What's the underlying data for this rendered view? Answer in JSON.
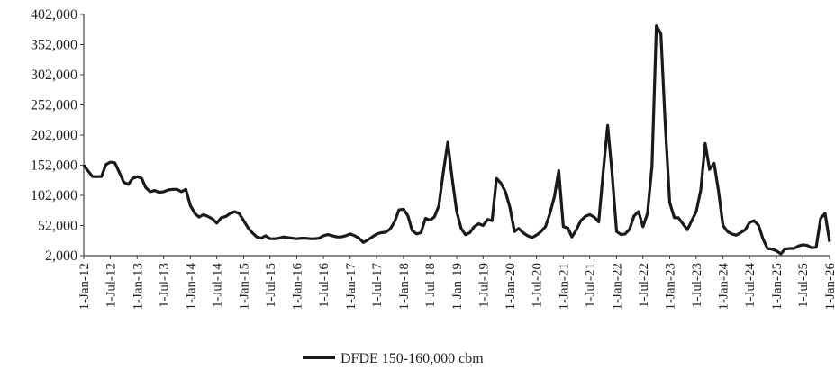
{
  "chart_data": {
    "type": "line",
    "title": "",
    "xlabel": "",
    "ylabel": "",
    "ylim": [
      2000,
      402000
    ],
    "y_ticks": [
      "402,000",
      "352,000",
      "302,000",
      "252,000",
      "202,000",
      "152,000",
      "102,000",
      "52,000",
      "2,000"
    ],
    "y_tick_values": [
      402000,
      352000,
      302000,
      252000,
      202000,
      152000,
      102000,
      52000,
      2000
    ],
    "x_tick_labels": [
      "1-Jan-12",
      "1-Jul-12",
      "1-Jan-13",
      "1-Jul-13",
      "1-Jan-14",
      "1-Jul-14",
      "1-Jan-15",
      "1-Jul-15",
      "1-Jan-16",
      "1-Jul-16",
      "1-Jan-17",
      "1-Jul-17",
      "1-Jan-18",
      "1-Jul-18",
      "1-Jan-19",
      "1-Jul-19",
      "1-Jan-20",
      "1-Jul-20",
      "1-Jan-21",
      "1-Jul-21",
      "1-Jan-22",
      "1-Jul-22",
      "1-Jan-23",
      "1-Jul-23",
      "1-Jan-24",
      "1-Jul-24",
      "1-Jan-25",
      "1-Jul-25",
      "1-Jan-26"
    ],
    "x_range": [
      "2012-01-01",
      "2026-01-01"
    ],
    "grid": false,
    "legend_position": "bottom",
    "series": [
      {
        "name": "DFDE 150-160,000 cbm",
        "color": "#1a1a1a",
        "points": [
          [
            "2012-01-01",
            152000
          ],
          [
            "2012-02-01",
            142000
          ],
          [
            "2012-03-01",
            133000
          ],
          [
            "2012-04-01",
            133000
          ],
          [
            "2012-05-01",
            133000
          ],
          [
            "2012-06-01",
            153000
          ],
          [
            "2012-07-01",
            157000
          ],
          [
            "2012-08-01",
            156000
          ],
          [
            "2012-09-01",
            140000
          ],
          [
            "2012-10-01",
            124000
          ],
          [
            "2012-11-01",
            120000
          ],
          [
            "2012-12-01",
            130000
          ],
          [
            "2013-01-01",
            133000
          ],
          [
            "2013-02-01",
            130000
          ],
          [
            "2013-03-01",
            115000
          ],
          [
            "2013-04-01",
            108000
          ],
          [
            "2013-05-01",
            110000
          ],
          [
            "2013-06-01",
            107000
          ],
          [
            "2013-07-01",
            108000
          ],
          [
            "2013-08-01",
            111000
          ],
          [
            "2013-09-01",
            112000
          ],
          [
            "2013-10-01",
            112000
          ],
          [
            "2013-11-01",
            108000
          ],
          [
            "2013-12-01",
            112000
          ],
          [
            "2014-01-01",
            85000
          ],
          [
            "2014-02-01",
            72000
          ],
          [
            "2014-03-01",
            66000
          ],
          [
            "2014-04-01",
            70000
          ],
          [
            "2014-05-01",
            67000
          ],
          [
            "2014-06-01",
            63000
          ],
          [
            "2014-07-01",
            56000
          ],
          [
            "2014-08-01",
            65000
          ],
          [
            "2014-09-01",
            67000
          ],
          [
            "2014-10-01",
            72000
          ],
          [
            "2014-11-01",
            75000
          ],
          [
            "2014-12-01",
            72000
          ],
          [
            "2015-01-01",
            60000
          ],
          [
            "2015-02-01",
            48000
          ],
          [
            "2015-03-01",
            40000
          ],
          [
            "2015-04-01",
            33000
          ],
          [
            "2015-05-01",
            31000
          ],
          [
            "2015-06-01",
            35000
          ],
          [
            "2015-07-01",
            30000
          ],
          [
            "2015-08-01",
            30000
          ],
          [
            "2015-09-01",
            31000
          ],
          [
            "2015-10-01",
            33000
          ],
          [
            "2015-11-01",
            32000
          ],
          [
            "2015-12-01",
            31000
          ],
          [
            "2016-01-01",
            30000
          ],
          [
            "2016-02-01",
            31000
          ],
          [
            "2016-03-01",
            31000
          ],
          [
            "2016-04-01",
            30000
          ],
          [
            "2016-05-01",
            30000
          ],
          [
            "2016-06-01",
            31000
          ],
          [
            "2016-07-01",
            35000
          ],
          [
            "2016-08-01",
            37000
          ],
          [
            "2016-09-01",
            35000
          ],
          [
            "2016-10-01",
            33000
          ],
          [
            "2016-11-01",
            33000
          ],
          [
            "2016-12-01",
            35000
          ],
          [
            "2017-01-01",
            38000
          ],
          [
            "2017-02-01",
            35000
          ],
          [
            "2017-03-01",
            31000
          ],
          [
            "2017-04-01",
            24000
          ],
          [
            "2017-05-01",
            28000
          ],
          [
            "2017-06-01",
            33000
          ],
          [
            "2017-07-01",
            38000
          ],
          [
            "2017-08-01",
            40000
          ],
          [
            "2017-09-01",
            41000
          ],
          [
            "2017-10-01",
            46000
          ],
          [
            "2017-11-01",
            58000
          ],
          [
            "2017-12-01",
            78000
          ],
          [
            "2018-01-01",
            79000
          ],
          [
            "2018-02-01",
            68000
          ],
          [
            "2018-03-01",
            44000
          ],
          [
            "2018-04-01",
            38000
          ],
          [
            "2018-05-01",
            40000
          ],
          [
            "2018-06-01",
            64000
          ],
          [
            "2018-07-01",
            61000
          ],
          [
            "2018-08-01",
            66000
          ],
          [
            "2018-09-01",
            85000
          ],
          [
            "2018-10-01",
            140000
          ],
          [
            "2018-11-01",
            190000
          ],
          [
            "2018-12-01",
            130000
          ],
          [
            "2019-01-01",
            75000
          ],
          [
            "2019-02-01",
            47000
          ],
          [
            "2019-03-01",
            37000
          ],
          [
            "2019-04-01",
            40000
          ],
          [
            "2019-05-01",
            50000
          ],
          [
            "2019-06-01",
            55000
          ],
          [
            "2019-07-01",
            52000
          ],
          [
            "2019-08-01",
            62000
          ],
          [
            "2019-09-01",
            60000
          ],
          [
            "2019-10-01",
            130000
          ],
          [
            "2019-11-01",
            122000
          ],
          [
            "2019-12-01",
            108000
          ],
          [
            "2020-01-01",
            82000
          ],
          [
            "2020-02-01",
            42000
          ],
          [
            "2020-03-01",
            47000
          ],
          [
            "2020-04-01",
            40000
          ],
          [
            "2020-05-01",
            35000
          ],
          [
            "2020-06-01",
            32000
          ],
          [
            "2020-07-01",
            36000
          ],
          [
            "2020-08-01",
            42000
          ],
          [
            "2020-09-01",
            50000
          ],
          [
            "2020-10-01",
            72000
          ],
          [
            "2020-11-01",
            100000
          ],
          [
            "2020-12-01",
            143000
          ],
          [
            "2021-01-01",
            50000
          ],
          [
            "2021-02-01",
            48000
          ],
          [
            "2021-03-01",
            33000
          ],
          [
            "2021-04-01",
            45000
          ],
          [
            "2021-05-01",
            60000
          ],
          [
            "2021-06-01",
            67000
          ],
          [
            "2021-07-01",
            70000
          ],
          [
            "2021-08-01",
            66000
          ],
          [
            "2021-09-01",
            58000
          ],
          [
            "2021-10-01",
            140000
          ],
          [
            "2021-11-01",
            218000
          ],
          [
            "2021-12-01",
            140000
          ],
          [
            "2022-01-01",
            42000
          ],
          [
            "2022-02-01",
            37000
          ],
          [
            "2022-03-01",
            38000
          ],
          [
            "2022-04-01",
            46000
          ],
          [
            "2022-05-01",
            68000
          ],
          [
            "2022-06-01",
            75000
          ],
          [
            "2022-07-01",
            50000
          ],
          [
            "2022-08-01",
            72000
          ],
          [
            "2022-09-01",
            150000
          ],
          [
            "2022-10-01",
            383000
          ],
          [
            "2022-11-01",
            370000
          ],
          [
            "2022-12-01",
            220000
          ],
          [
            "2023-01-01",
            90000
          ],
          [
            "2023-02-01",
            65000
          ],
          [
            "2023-03-01",
            65000
          ],
          [
            "2023-04-01",
            55000
          ],
          [
            "2023-05-01",
            45000
          ],
          [
            "2023-06-01",
            60000
          ],
          [
            "2023-07-01",
            75000
          ],
          [
            "2023-08-01",
            110000
          ],
          [
            "2023-09-01",
            188000
          ],
          [
            "2023-10-01",
            145000
          ],
          [
            "2023-11-01",
            155000
          ],
          [
            "2023-12-01",
            110000
          ],
          [
            "2024-01-01",
            52000
          ],
          [
            "2024-02-01",
            42000
          ],
          [
            "2024-03-01",
            38000
          ],
          [
            "2024-04-01",
            36000
          ],
          [
            "2024-05-01",
            40000
          ],
          [
            "2024-06-01",
            45000
          ],
          [
            "2024-07-01",
            57000
          ],
          [
            "2024-08-01",
            60000
          ],
          [
            "2024-09-01",
            52000
          ],
          [
            "2024-10-01",
            30000
          ],
          [
            "2024-11-01",
            14000
          ],
          [
            "2024-12-01",
            13000
          ],
          [
            "2025-01-01",
            10000
          ],
          [
            "2025-02-01",
            5000
          ],
          [
            "2025-03-01",
            13000
          ],
          [
            "2025-04-01",
            14000
          ],
          [
            "2025-05-01",
            14000
          ],
          [
            "2025-06-01",
            18000
          ],
          [
            "2025-07-01",
            20000
          ],
          [
            "2025-08-01",
            19000
          ],
          [
            "2025-09-01",
            15000
          ],
          [
            "2025-10-01",
            16000
          ],
          [
            "2025-11-01",
            64000
          ],
          [
            "2025-12-01",
            72000
          ],
          [
            "2026-01-01",
            25000
          ]
        ]
      }
    ]
  }
}
